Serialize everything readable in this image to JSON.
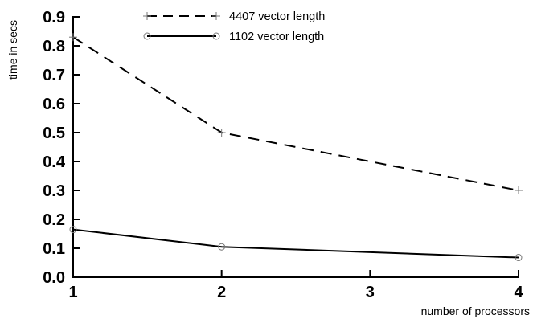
{
  "chart_data": {
    "type": "line",
    "xlabel": "number of processors",
    "ylabel": "time in secs",
    "x": [
      1,
      2,
      4
    ],
    "xlim": [
      1,
      4
    ],
    "ylim": [
      0,
      0.9
    ],
    "xticks": [
      "1",
      "2",
      "3",
      "4"
    ],
    "yticks": [
      "0.0",
      "0.1",
      "0.2",
      "0.3",
      "0.4",
      "0.5",
      "0.6",
      "0.7",
      "0.8",
      "0.9"
    ],
    "legend_position": "top-center",
    "grid": false,
    "series": [
      {
        "name": "4407 vector length",
        "values": [
          0.83,
          0.5,
          0.3
        ],
        "line_style": "dashed",
        "marker": "plus",
        "color": "#000000"
      },
      {
        "name": "1102 vector length",
        "values": [
          0.165,
          0.105,
          0.068
        ],
        "line_style": "solid",
        "marker": "circle",
        "color": "#000000"
      }
    ]
  }
}
